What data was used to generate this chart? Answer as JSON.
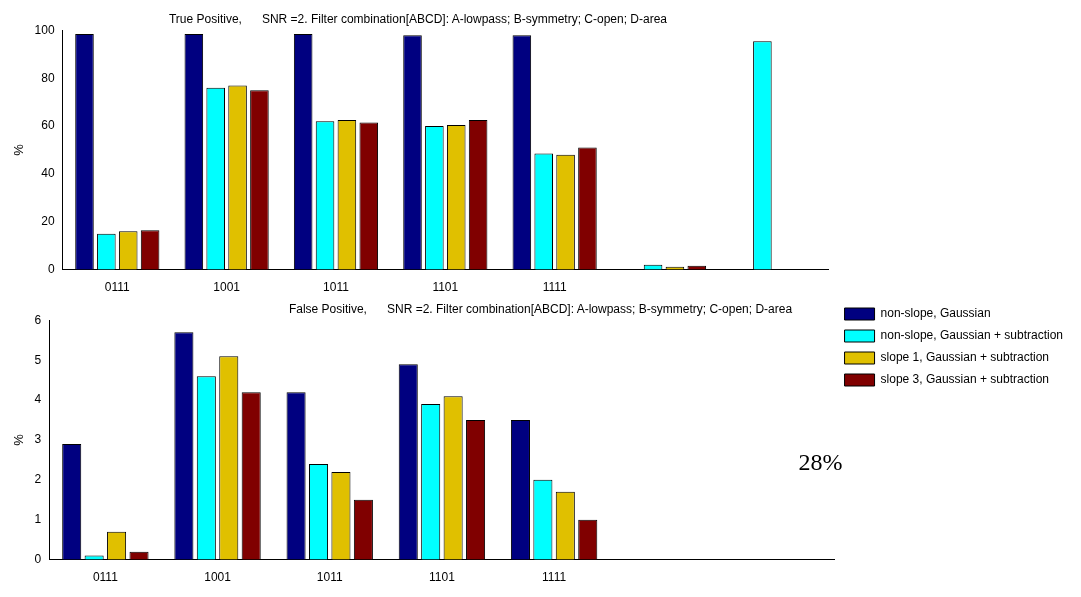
{
  "chart_data": [
    {
      "type": "bar",
      "title": "True Positive,      SNR =2. Filter combination[ABCD]: A-lowpass; B-symmetry; C-open; D-area",
      "ylabel": "%",
      "categories": [
        "0111",
        "1001",
        "1011",
        "1101",
        "1111",
        null,
        null
      ],
      "ylim": [
        0,
        100
      ],
      "yticks": [
        0,
        20,
        40,
        60,
        80,
        100
      ],
      "grid": false,
      "legend": false,
      "series": [
        {
          "color": "#000080",
          "values": [
            98.5,
            98.5,
            98.5,
            98,
            98,
            null,
            null
          ]
        },
        {
          "color": "#00ffff",
          "values": [
            15,
            76,
            62,
            60,
            48.5,
            2,
            95.5
          ]
        },
        {
          "color": "#e0c000",
          "values": [
            16,
            77,
            62.5,
            60.5,
            48,
            1.2,
            null
          ]
        },
        {
          "color": "#800000",
          "values": [
            16.5,
            75,
            61.5,
            62.5,
            51,
            1.6,
            null
          ]
        }
      ]
    },
    {
      "type": "bar",
      "title": "False Positive,      SNR =2. Filter combination[ABCD]: A-lowpass; B-symmetry; C-open; D-area",
      "ylabel": "%",
      "categories": [
        "0111",
        "1001",
        "1011",
        "1101",
        "1111",
        null,
        null
      ],
      "ylim": [
        0,
        6
      ],
      "yticks": [
        0,
        1,
        2,
        3,
        4,
        5,
        6
      ],
      "grid": false,
      "legend": "top right",
      "annotations": [
        "28%"
      ],
      "series": [
        {
          "name": "non-slope, Gaussian",
          "color": "#000080",
          "values": [
            2.9,
            5.7,
            4.2,
            4.9,
            3.5,
            null,
            null
          ]
        },
        {
          "name": "non-slope, Gaussian + subtraction",
          "color": "#00ffff",
          "values": [
            0.1,
            4.6,
            2.4,
            3.9,
            2.0,
            null,
            null
          ]
        },
        {
          "name": "slope 1, Gaussian + subtraction",
          "color": "#e0c000",
          "values": [
            0.7,
            5.1,
            2.2,
            4.1,
            1.7,
            null,
            null
          ]
        },
        {
          "name": "slope 3, Gaussian + subtraction",
          "color": "#800000",
          "values": [
            0.2,
            4.2,
            1.5,
            3.5,
            1.0,
            null,
            null
          ]
        }
      ]
    }
  ]
}
